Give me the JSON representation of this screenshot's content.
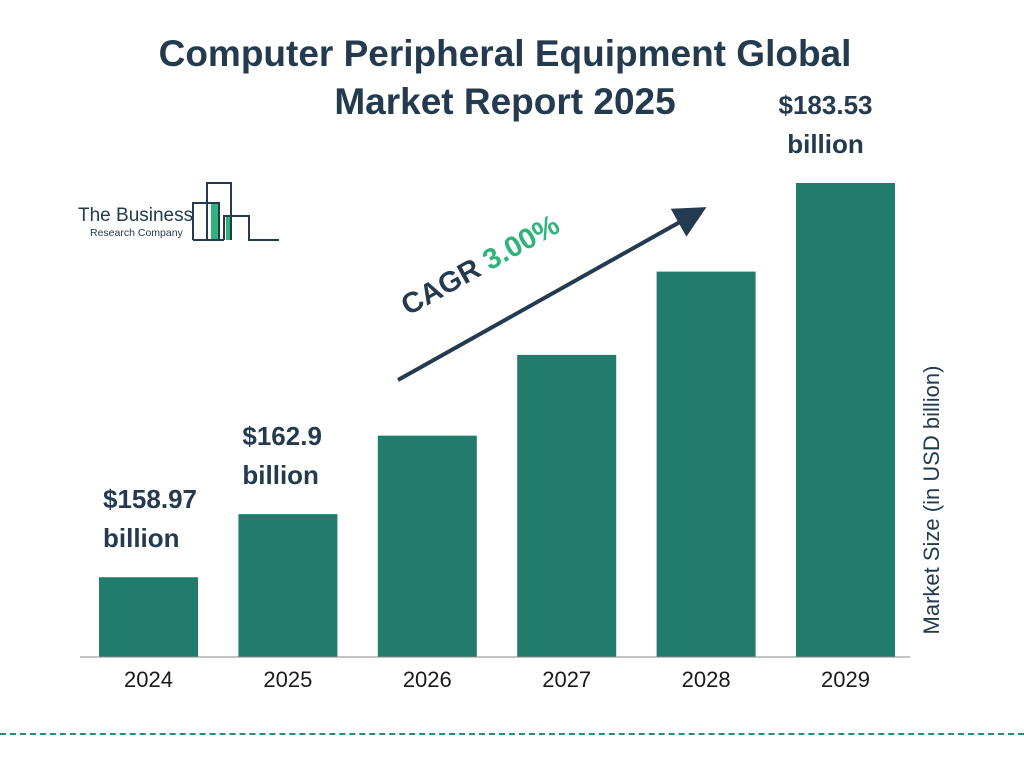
{
  "title": "Computer Peripheral Equipment Global Market Report 2025",
  "title_lines": [
    "Computer Peripheral Equipment Global",
    "Market Report 2025"
  ],
  "logo": {
    "line1": "The Business",
    "line2": "Research Company"
  },
  "cagr": {
    "label": "CAGR",
    "value": "3.00%"
  },
  "colors": {
    "bar": "#217c6c",
    "text": "#233a4f",
    "accent": "#2fb47c"
  },
  "chart_data": {
    "type": "bar",
    "title": "Computer Peripheral Equipment Global Market Report 2025",
    "categories": [
      "2024",
      "2025",
      "2026",
      "2027",
      "2028",
      "2029"
    ],
    "values": [
      158.97,
      162.9,
      167.79,
      172.82,
      178.01,
      183.53
    ],
    "data_labels": [
      {
        "index": 0,
        "lines": [
          "$158.97",
          "billion"
        ]
      },
      {
        "index": 1,
        "lines": [
          "$162.9",
          "billion"
        ]
      },
      {
        "index": 5,
        "lines": [
          "$183.53",
          "billion"
        ]
      }
    ],
    "xlabel": "",
    "ylabel": "Market Size (in USD billion)",
    "grid": false,
    "legend": "none"
  }
}
